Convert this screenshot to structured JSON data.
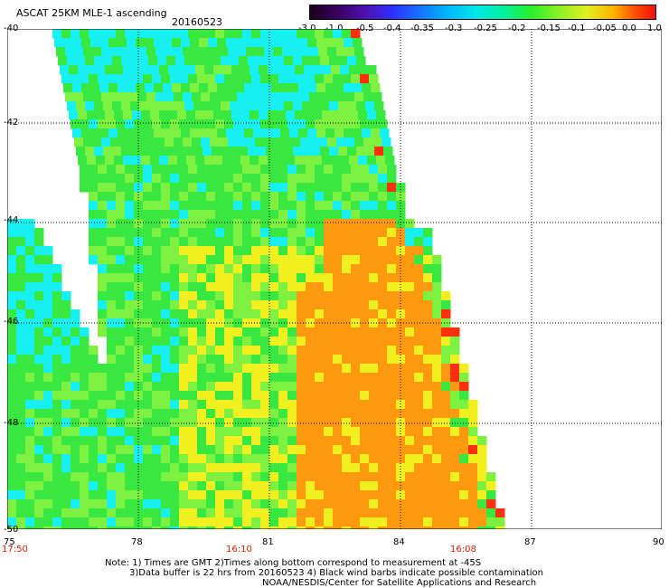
{
  "header": {
    "title": "ASCAT 25KM MLE-1 ascending",
    "date": "20160523"
  },
  "colorbar": {
    "labels": [
      "-3.0",
      "-1.0",
      "-0.5",
      "-0.4",
      "-0.35",
      "-0.3",
      "-0.25",
      "-0.2",
      "-0.15",
      "-0.1",
      "-0.05",
      "0.0",
      "1.0"
    ],
    "colors": [
      "#1a0018",
      "#3a0062",
      "#5010b0",
      "#2e30ff",
      "#1476ff",
      "#00b8ff",
      "#00e8e8",
      "#00f0a0",
      "#28f028",
      "#8cf028",
      "#e0f020",
      "#ffb000",
      "#ff5000",
      "#f01010"
    ]
  },
  "map": {
    "lat_labels": [
      "-40",
      "-42",
      "-44",
      "-46",
      "-48",
      "-50"
    ],
    "lon_labels": [
      "75",
      "78",
      "81",
      "84",
      "87",
      "90"
    ],
    "times": [
      "17:50",
      "16:10",
      "16:08"
    ],
    "colors": {
      "cyan": "#16f0f0",
      "green": "#38e840",
      "lgreen": "#7ef040",
      "yellow": "#f0f020",
      "orange": "#ff9a10",
      "red": "#ff3010"
    }
  },
  "notes": {
    "line1": "Note: 1) Times are GMT 2)Times along bottom correspond to measurement at -45S",
    "line2": "3)Data buffer is 22 hrs from 20160523 4) Black wind barbs indicate possible contamination",
    "line3": "NOAA/NESDIS/Center for Satellite Applications and Research"
  }
}
